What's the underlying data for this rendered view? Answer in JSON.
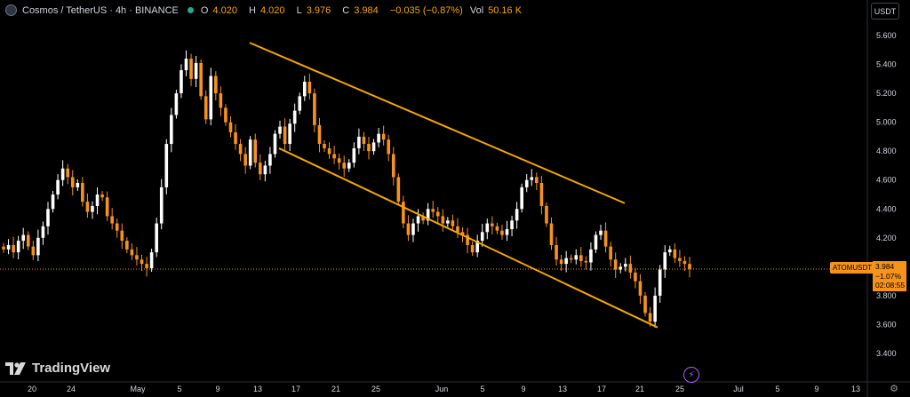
{
  "header": {
    "title": "Cosmos / TetherUS · 4h · BINANCE",
    "open_label": "O",
    "open": "4.020",
    "high_label": "H",
    "high": "4.020",
    "low_label": "L",
    "low": "3.976",
    "close_label": "C",
    "close": "3.984",
    "change": "−0.035 (−0.87%)",
    "vol_label": "Vol",
    "vol": "50.16 K"
  },
  "currency_button": "USDT",
  "logo_text": "TradingView",
  "symbol_badge": "ATOMUSDT",
  "price_badge": {
    "price": "3.984",
    "change": "−1.07%",
    "countdown": "02:08:55"
  },
  "colors": {
    "background": "#000000",
    "candle_up": "#ffffff",
    "candle_down": "#f7931a",
    "channel": "#f7a600",
    "price_line": "#f7931a",
    "axis_text": "#d1d4dc",
    "badge": "#f7931a"
  },
  "icons": {
    "flash": "lightning-icon",
    "settings": "gear-icon"
  },
  "chart_data": {
    "type": "candlestick",
    "y_axis": {
      "side": "right",
      "ticks": [
        "5.600",
        "5.400",
        "5.200",
        "5.000",
        "4.800",
        "4.600",
        "4.400",
        "4.200",
        "3.800",
        "3.600",
        "3.400"
      ],
      "ylim": [
        3.25,
        5.75
      ]
    },
    "x_axis": {
      "ticks": [
        "20",
        "24",
        "May",
        "5",
        "9",
        "13",
        "17",
        "21",
        "25",
        "Jun",
        "5",
        "9",
        "13",
        "17",
        "21",
        "25",
        "Jul",
        "5",
        "9",
        "13"
      ]
    },
    "series": {
      "close": [
        4.12,
        4.15,
        4.1,
        4.18,
        4.22,
        4.14,
        4.08,
        4.2,
        4.28,
        4.4,
        4.5,
        4.6,
        4.68,
        4.62,
        4.55,
        4.58,
        4.45,
        4.38,
        4.42,
        4.5,
        4.48,
        4.35,
        4.3,
        4.25,
        4.18,
        4.12,
        4.08,
        4.05,
        4.02,
        3.99,
        4.1,
        4.3,
        4.55,
        4.85,
        5.05,
        5.2,
        5.36,
        5.44,
        5.3,
        5.41,
        5.18,
        5.02,
        5.32,
        5.2,
        5.1,
        5.0,
        4.93,
        4.85,
        4.78,
        4.7,
        4.88,
        4.72,
        4.64,
        4.7,
        4.78,
        4.92,
        4.97,
        4.85,
        4.99,
        5.08,
        5.18,
        5.28,
        5.2,
        4.98,
        4.85,
        4.82,
        4.78,
        4.75,
        4.72,
        4.68,
        4.72,
        4.82,
        4.9,
        4.85,
        4.8,
        4.86,
        4.92,
        4.88,
        4.78,
        4.62,
        4.45,
        4.3,
        4.22,
        4.3,
        4.35,
        4.32,
        4.4,
        4.38,
        4.35,
        4.3,
        4.32,
        4.28,
        4.24,
        4.22,
        4.15,
        4.1,
        4.18,
        4.24,
        4.3,
        4.28,
        4.25,
        4.22,
        4.26,
        4.32,
        4.4,
        4.55,
        4.6,
        4.62,
        4.58,
        4.42,
        4.3,
        4.15,
        4.05,
        4.02,
        4.06,
        4.05,
        4.08,
        4.04,
        4.03,
        4.12,
        4.22,
        4.25,
        4.14,
        4.05,
        3.98,
        4.0,
        4.02,
        3.96,
        3.9,
        3.8,
        3.68,
        3.62,
        3.8,
        3.98,
        4.1,
        4.12,
        4.06,
        4.04,
        4.02,
        3.984
      ]
    },
    "annotations": [
      {
        "type": "channel-upper",
        "from": {
          "x": "May 12",
          "y": 5.55
        },
        "to": {
          "x": "Jun 19",
          "y": 4.44
        }
      },
      {
        "type": "channel-lower",
        "from": {
          "x": "May 14",
          "y": 4.82
        },
        "to": {
          "x": "Jun 24",
          "y": 3.58
        }
      },
      {
        "type": "price-line",
        "y": 3.984
      }
    ],
    "last_price": 3.984
  }
}
